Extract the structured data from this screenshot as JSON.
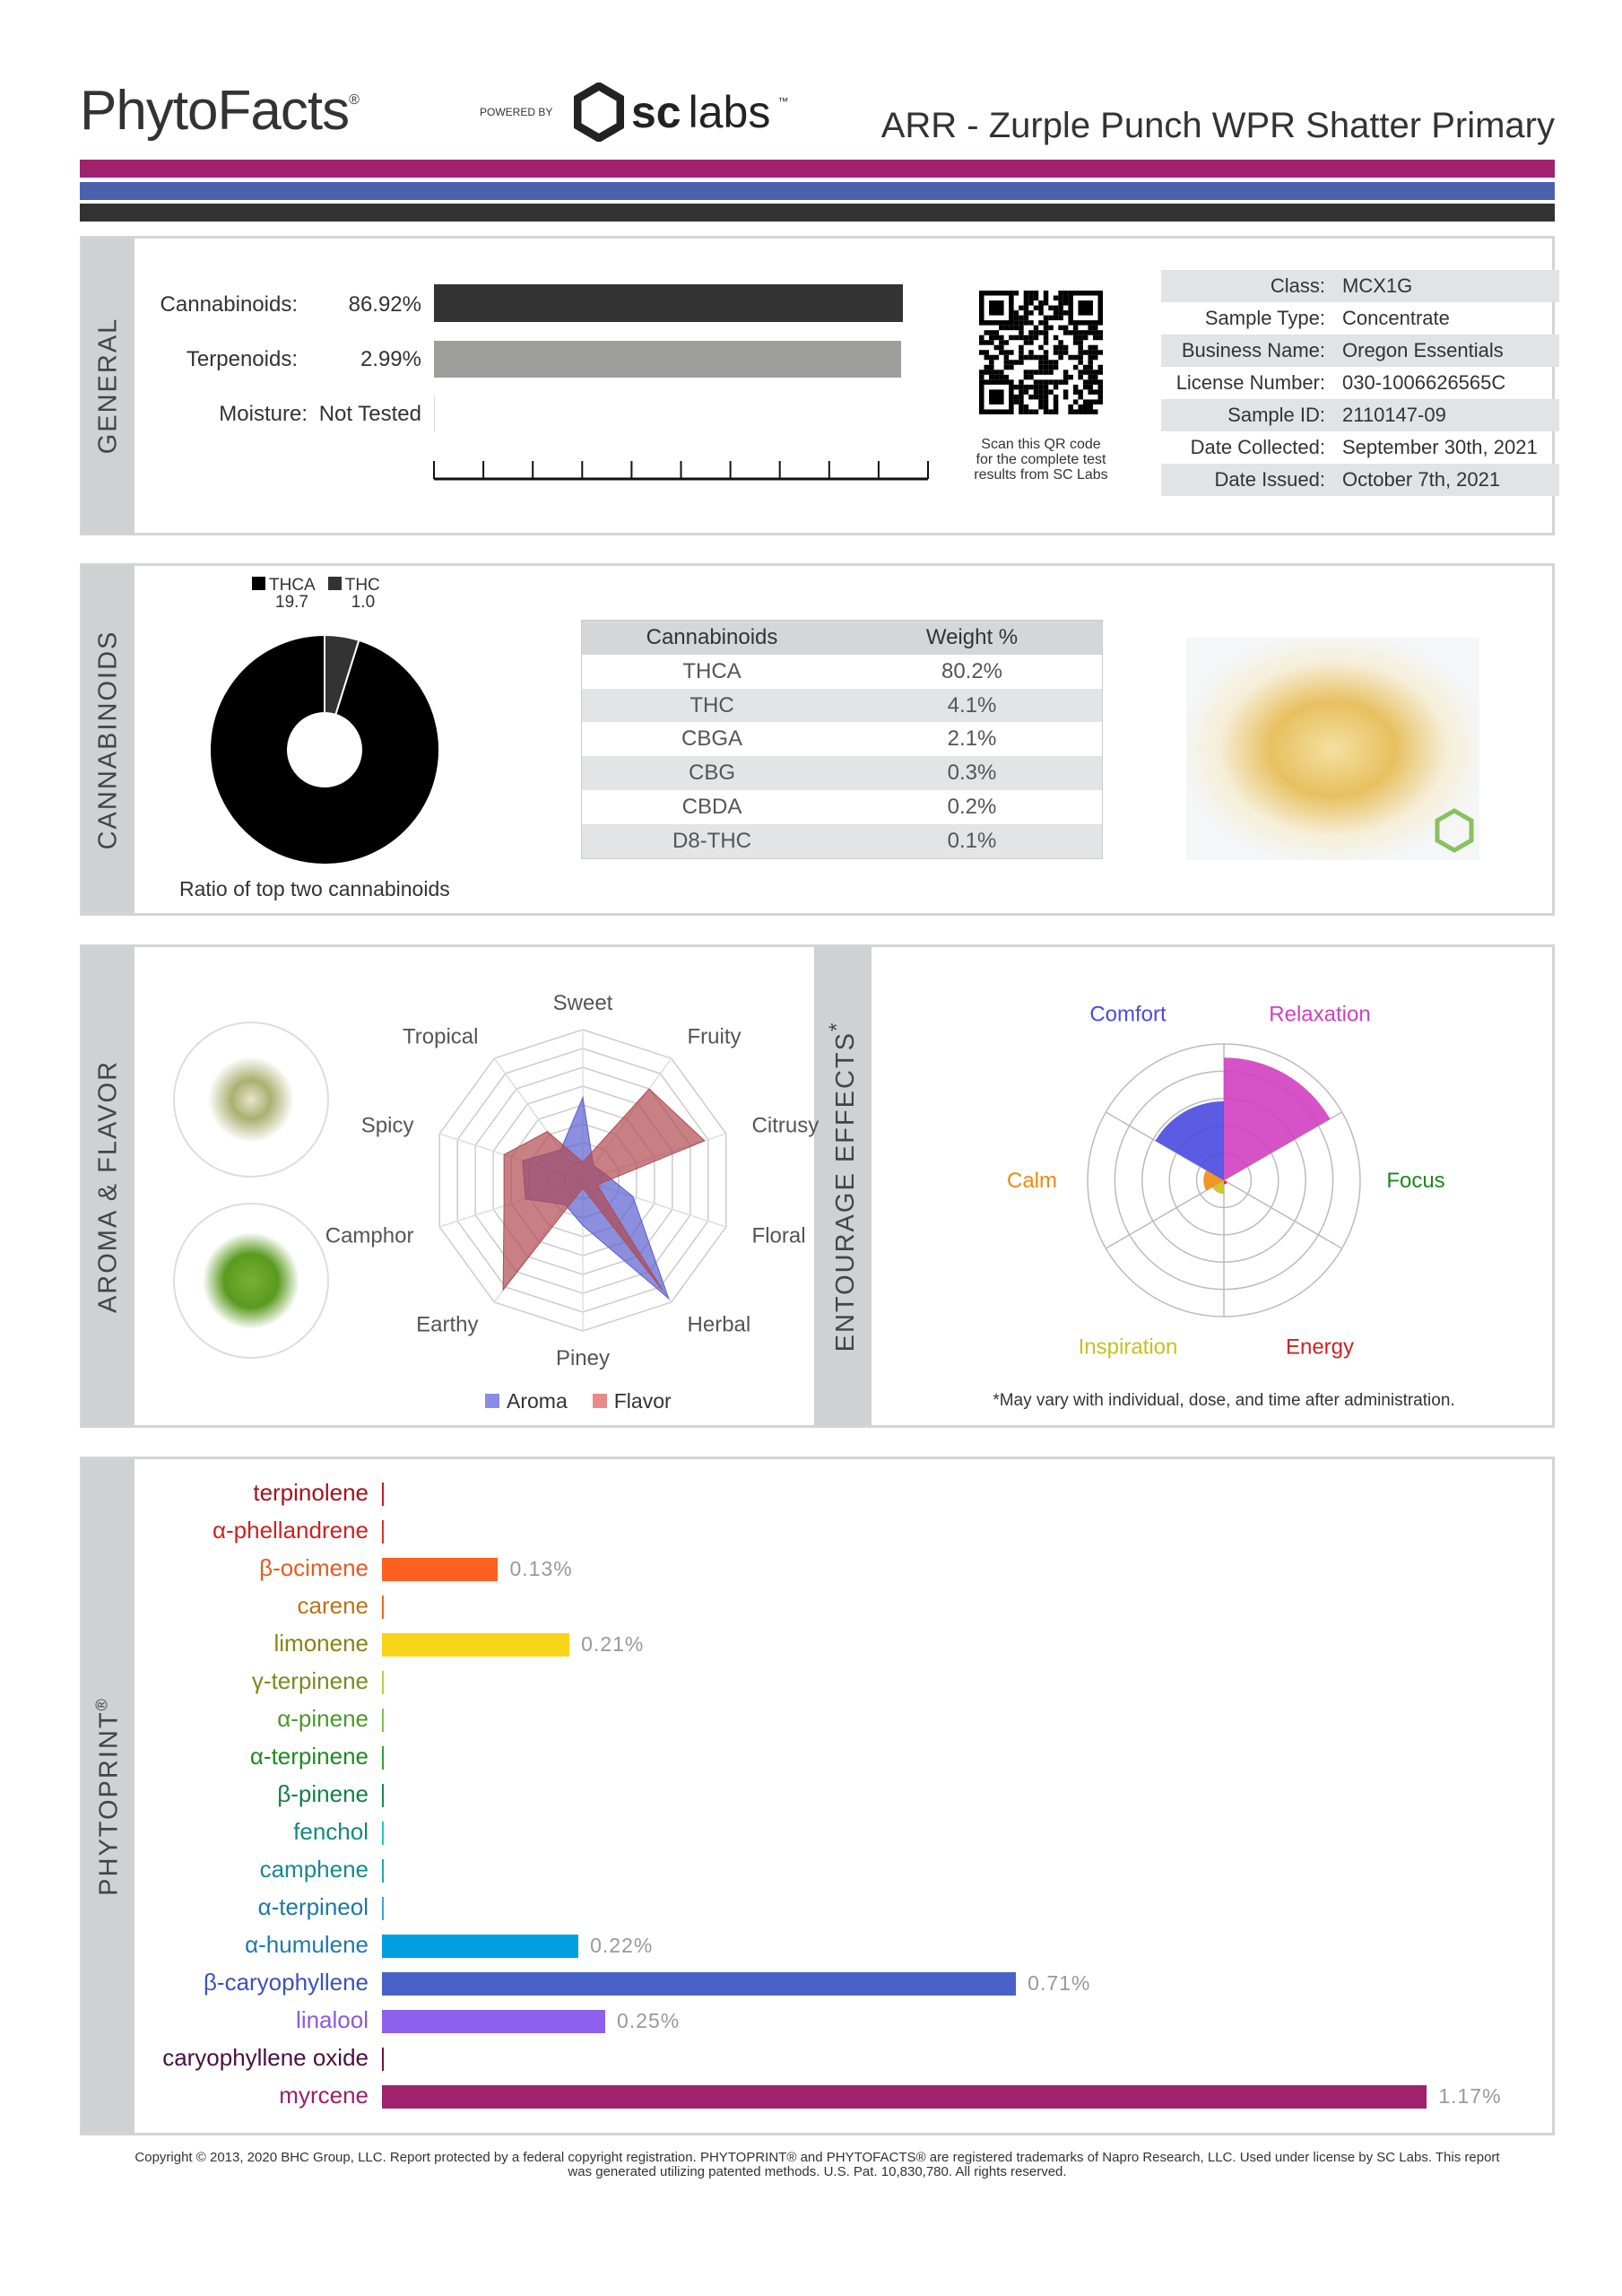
{
  "header": {
    "logo": "PhytoFacts",
    "logo_mark": "®",
    "powered_by": "POWERED BY",
    "lab_logo_sc": "sc",
    "lab_logo_labs": "labs",
    "lab_logo_tm": "™",
    "title": "ARR - Zurple Punch WPR Shatter Primary"
  },
  "colors": {
    "stripe1": "#a0226f",
    "stripe2": "#4a62ad",
    "stripe3": "#333333"
  },
  "general": {
    "section_label": "GENERAL",
    "cannabinoids_label": "Cannabinoids:",
    "cannabinoids_value": "86.92%",
    "cannabinoids_fraction": 0.8692,
    "terpenoids_label": "Terpenoids:",
    "terpenoids_value": "2.99%",
    "terpenoids_fraction": 0.0299,
    "moisture_label": "Moisture:",
    "moisture_value": "Not Tested",
    "qr_caption": [
      "Scan this QR code",
      "for the complete test",
      "results from SC Labs"
    ],
    "info": [
      {
        "k": "Class:",
        "v": "MCX1G"
      },
      {
        "k": "Sample Type:",
        "v": "Concentrate"
      },
      {
        "k": "Business Name:",
        "v": "Oregon Essentials"
      },
      {
        "k": "License Number:",
        "v": "030-1006626565C"
      },
      {
        "k": "Sample ID:",
        "v": "2110147-09"
      },
      {
        "k": "Date Collected:",
        "v": "September 30th, 2021"
      },
      {
        "k": "Date Issued:",
        "v": "October 7th, 2021"
      }
    ]
  },
  "cannabinoids": {
    "section_label": "CANNABINOIDS",
    "ratio_caption": "Ratio of top two cannabinoids",
    "legend": [
      {
        "name": "THCA",
        "ratio": "19.7",
        "value": 19.7,
        "color": "#000000"
      },
      {
        "name": "THC",
        "ratio": "1.0",
        "value": 1.0,
        "color": "#333333"
      }
    ],
    "table_headers": [
      "Cannabinoids",
      "Weight %"
    ],
    "table_rows": [
      [
        "THCA",
        "80.2%"
      ],
      [
        "THC",
        "4.1%"
      ],
      [
        "CBGA",
        "2.1%"
      ],
      [
        "CBG",
        "0.3%"
      ],
      [
        "CBDA",
        "0.2%"
      ],
      [
        "D8-THC",
        "0.1%"
      ]
    ]
  },
  "aroma": {
    "section_label": "AROMA & FLAVOR",
    "legend_aroma": "Aroma",
    "legend_flavor": "Flavor"
  },
  "effects": {
    "section_label": "ENTOURAGE EFFECTS",
    "asterisk": "*",
    "footnote": "*May vary with individual, dose, and time after administration."
  },
  "phytoprint": {
    "section_label": "PHYTOPRINT",
    "mark": "®"
  },
  "chart_data": [
    {
      "type": "pie",
      "title": "Ratio of top two cannabinoids",
      "labels": [
        "THCA",
        "THC"
      ],
      "values": [
        19.7,
        1.0
      ]
    },
    {
      "type": "radar",
      "axes": [
        "Sweet",
        "Fruity",
        "Citrusy",
        "Floral",
        "Herbal",
        "Piney",
        "Earthy",
        "Camphor",
        "Spicy",
        "Tropical"
      ],
      "range": [
        0,
        1
      ],
      "series": [
        {
          "name": "Aroma",
          "color": "#5a5fd0",
          "values": [
            0.55,
            0.12,
            0.15,
            0.35,
            0.97,
            0.3,
            0.2,
            0.4,
            0.42,
            0.25
          ]
        },
        {
          "name": "Flavor",
          "color": "#b04a50",
          "values": [
            0.12,
            0.75,
            0.85,
            0.1,
            0.9,
            0.05,
            0.9,
            0.55,
            0.55,
            0.4
          ]
        }
      ]
    },
    {
      "type": "polar-area",
      "categories": [
        "Relaxation",
        "Focus",
        "Energy",
        "Inspiration",
        "Calm",
        "Comfort"
      ],
      "colors": [
        "#d040c0",
        "#1a8a1a",
        "#d02020",
        "#c8c020",
        "#f08a10",
        "#4a4ae0"
      ],
      "values": [
        0.9,
        0.0,
        0.03,
        0.1,
        0.15,
        0.58
      ],
      "range": [
        0,
        1
      ]
    },
    {
      "type": "bar",
      "orientation": "horizontal",
      "unit": "%",
      "categories": [
        "terpinolene",
        "α-phellandrene",
        "β-ocimene",
        "carene",
        "limonene",
        "γ-terpinene",
        "α-pinene",
        "α-terpinene",
        "β-pinene",
        "fenchol",
        "camphene",
        "α-terpineol",
        "α-humulene",
        "β-caryophyllene",
        "linalool",
        "caryophyllene oxide",
        "myrcene"
      ],
      "values": [
        0,
        0,
        0.13,
        0,
        0.21,
        0,
        0,
        0,
        0,
        0,
        0,
        0,
        0.22,
        0.71,
        0.25,
        0,
        1.17
      ],
      "value_labels": [
        "",
        "",
        "0.13%",
        "",
        "0.21%",
        "",
        "",
        "",
        "",
        "",
        "",
        "",
        "0.22%",
        "0.71%",
        "0.25%",
        "",
        "1.17%"
      ],
      "label_colors": [
        "#a8101a",
        "#d0201e",
        "#e85a20",
        "#b87418",
        "#8a8210",
        "#7a8a20",
        "#4a9a28",
        "#1f8a1f",
        "#128048",
        "#108a7a",
        "#188890",
        "#1a78a8",
        "#1a7ab0",
        "#3a52b8",
        "#8a5ae0",
        "#4a1040",
        "#9a1e6e"
      ],
      "bar_colors": [
        "#c81a20",
        "#e03028",
        "#ff6020",
        "#f06a20",
        "#f8d418",
        "#b8d040",
        "#70c850",
        "#30a030",
        "#109050",
        "#20c8c0",
        "#20a8b0",
        "#30a8e0",
        "#00a0e0",
        "#4a62c8",
        "#8f60ee",
        "#6a1050",
        "#a0226f"
      ]
    }
  ],
  "footer": {
    "copyright_1": "Copyright © 2013, 2020 BHC Group, LLC. Report protected by a federal copyright registration. PHYTOPRINT® and PHYTOFACTS® are registered trademarks of Napro Research, LLC. Used under license by SC Labs. This report",
    "copyright_2": "was generated utilizing patented methods. U.S. Pat. 10,830,780. All rights reserved."
  }
}
